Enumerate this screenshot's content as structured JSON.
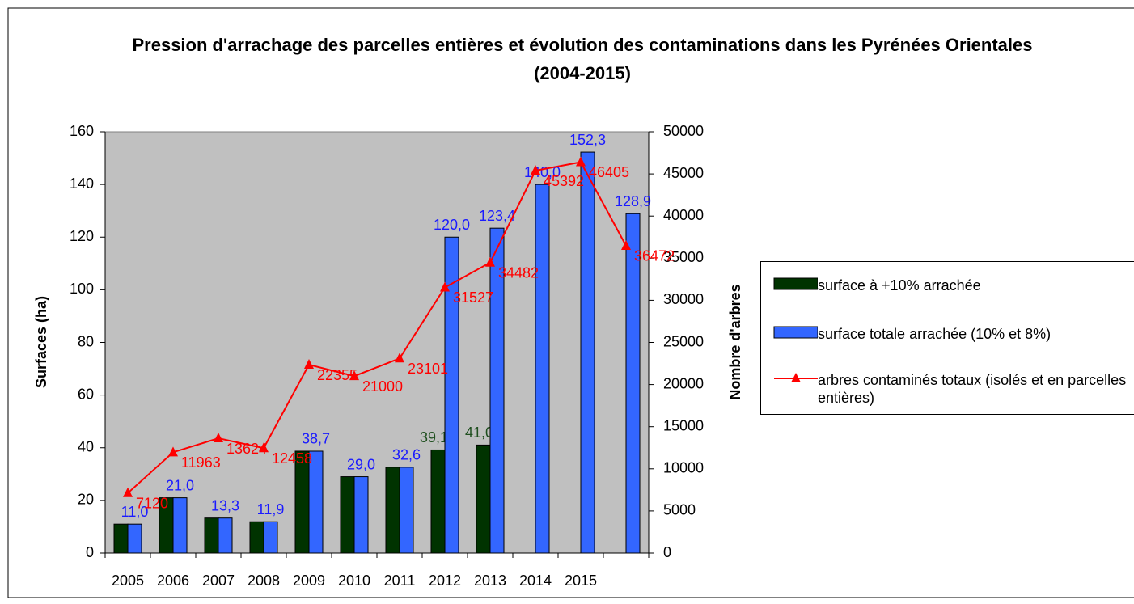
{
  "chart_data": {
    "type": "bar_line",
    "title": "Pression d'arrachage des parcelles entières et évolution des contaminations dans les Pyrénées Orientales (2004-2015)",
    "y_label": "Surfaces (ha)",
    "y2_label": "Nombre d'arbres",
    "categories": [
      "2005",
      "2006",
      "2007",
      "2008",
      "2009",
      "2010",
      "2011",
      "2012",
      "2013",
      "2014",
      "2015",
      null
    ],
    "series": [
      {
        "name": "surface à +10% arrachée",
        "type": "bar",
        "color": "#003300",
        "values": [
          11.0,
          21.0,
          13.3,
          11.9,
          38.7,
          29.0,
          32.6,
          39.17,
          41.03,
          null,
          null,
          null
        ],
        "value_labels": [
          null,
          null,
          null,
          null,
          null,
          null,
          null,
          "39,17",
          "41,03",
          null,
          null,
          null
        ]
      },
      {
        "name": "surface totale arrachée (10% et 8%)",
        "type": "bar",
        "color": "#3366ff",
        "values": [
          11.0,
          21.0,
          13.3,
          11.9,
          38.7,
          29.0,
          32.6,
          120.0,
          123.4,
          140.0,
          152.3,
          128.9
        ],
        "value_labels": [
          "11,0",
          "21,0",
          "13,3",
          "11,9",
          "38,7",
          "29,0",
          "32,6",
          "120,0",
          "123,4",
          "140,0",
          "152,3",
          "128,9"
        ]
      },
      {
        "name": "arbres contaminés totaux (isolés et en parcelles entières)",
        "type": "line",
        "axis": "y2",
        "color": "#ff0000",
        "values": [
          7120,
          11963,
          13624,
          12458,
          22355,
          21000,
          23101,
          31527,
          34482,
          45392,
          46405,
          36472
        ]
      }
    ],
    "ylim": [
      0,
      160
    ],
    "yticks": [
      0,
      20,
      40,
      60,
      80,
      100,
      120,
      140,
      160
    ],
    "y2lim": [
      0,
      50000
    ],
    "y2ticks": [
      0,
      5000,
      10000,
      15000,
      20000,
      25000,
      30000,
      35000,
      40000,
      45000,
      50000
    ],
    "legend": "right"
  }
}
